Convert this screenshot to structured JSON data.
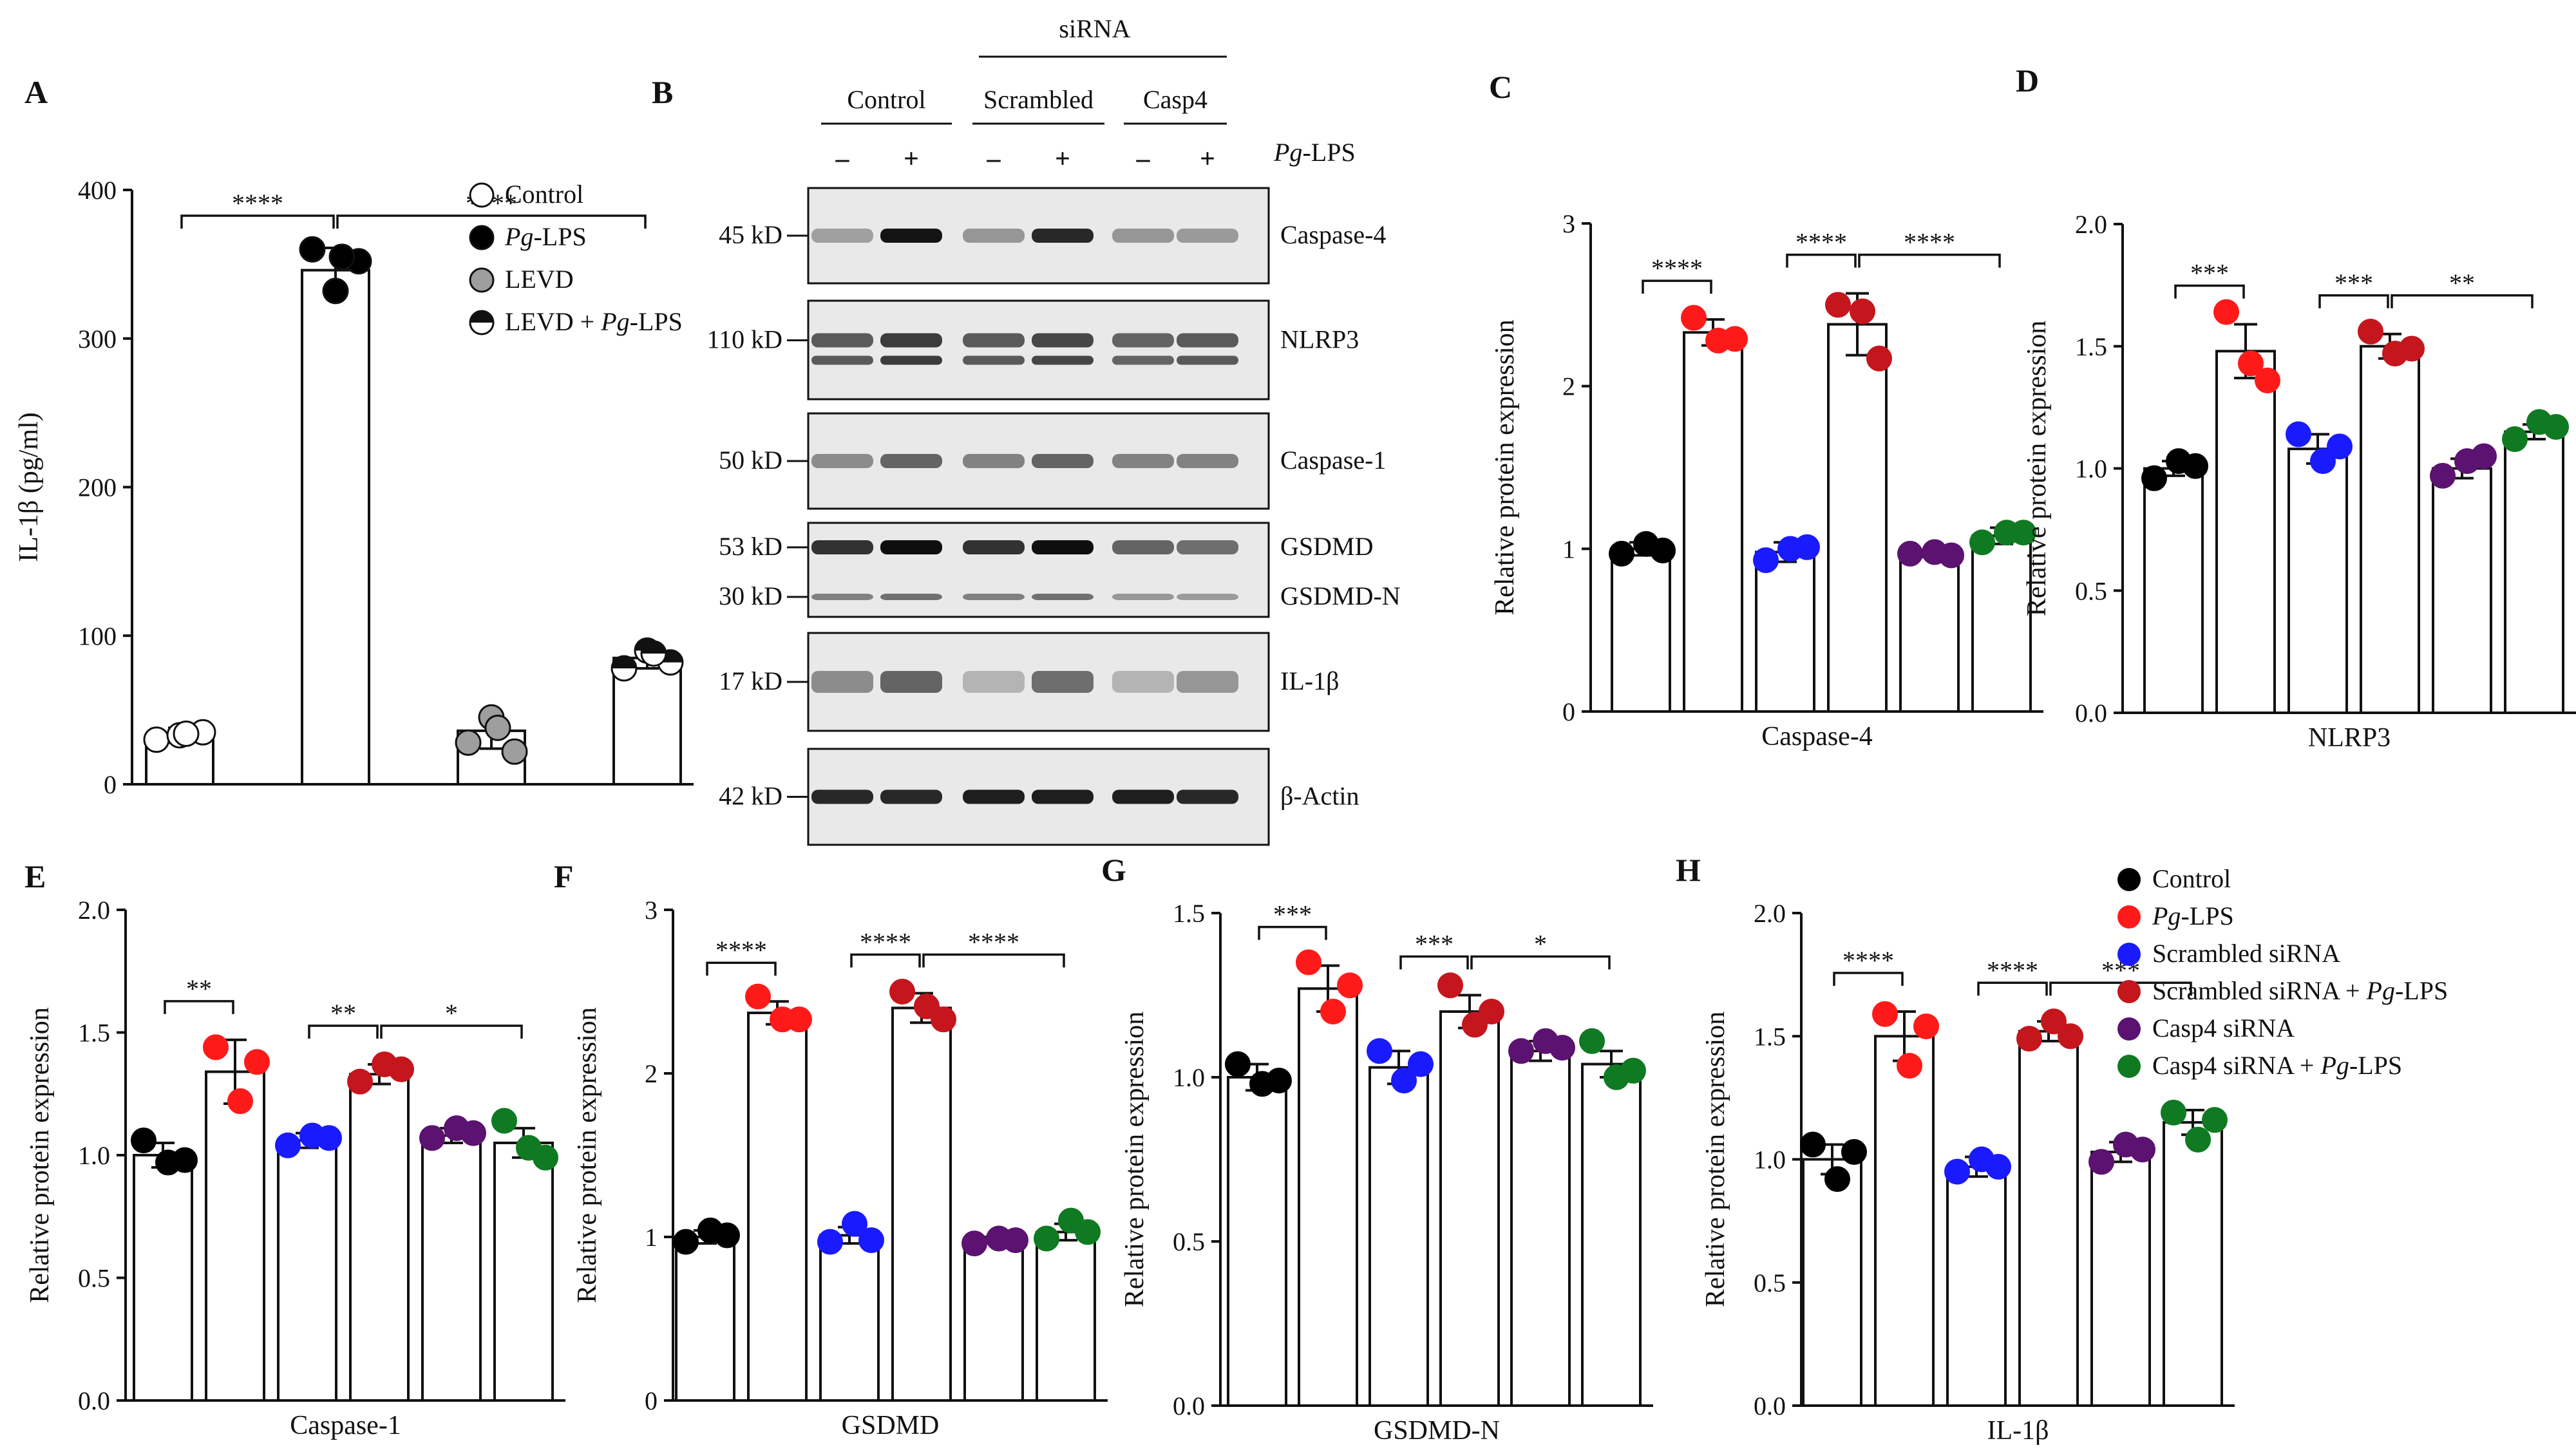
{
  "figure": {
    "panel_labels": [
      "A",
      "B",
      "C",
      "D",
      "E",
      "F",
      "G",
      "H"
    ]
  },
  "chart_data": [
    {
      "panel": "A",
      "type": "bar",
      "title": "",
      "xlabel": "",
      "ylabel": "IL-1β (pg/ml)",
      "ylim": [
        0,
        400
      ],
      "yticks": [
        "0",
        "100",
        "200",
        "300",
        "400"
      ],
      "categories": [
        "Control",
        "Pg-LPS",
        "LEVD",
        "LEVD + Pg-LPS"
      ],
      "values": [
        33,
        346,
        36,
        85
      ],
      "errors": [
        5,
        15,
        12,
        7
      ],
      "points": [
        [
          30,
          33,
          35,
          34
        ],
        [
          360,
          332,
          352,
          355
        ],
        [
          28,
          45,
          22,
          38
        ],
        [
          78,
          90,
          82,
          88
        ]
      ],
      "colors": [
        "#ffffff",
        "#000000",
        "#9e9e9e",
        "half"
      ],
      "legend": [
        {
          "label": "Control",
          "marker": "open"
        },
        {
          "label": "Pg-LPS",
          "italic_part": "Pg",
          "rest": "-LPS",
          "marker": "filled"
        },
        {
          "label": "LEVD",
          "marker": "gray"
        },
        {
          "label": "LEVD + Pg-LPS",
          "prefix": "LEVD + ",
          "italic_part": "Pg",
          "rest": "-LPS",
          "marker": "half"
        }
      ],
      "significance": [
        {
          "label": "****",
          "from": 0,
          "to": 1
        },
        {
          "label": "****",
          "from": 1,
          "to": 3
        }
      ]
    },
    {
      "panel": "C",
      "type": "bar",
      "xlabel": "Caspase-4",
      "ylabel": "Relative protein expression",
      "ylim": [
        0,
        3
      ],
      "yticks": [
        "0",
        "1",
        "2",
        "3"
      ],
      "categories": [
        "Control",
        "Pg-LPS",
        "Scrambled siRNA",
        "Scrambled siRNA + Pg-LPS",
        "Casp4 siRNA",
        "Casp4 siRNA + Pg-LPS"
      ],
      "values": [
        1.0,
        2.33,
        0.98,
        2.38,
        0.97,
        1.08
      ],
      "errors": [
        0.04,
        0.08,
        0.06,
        0.19,
        0.02,
        0.05
      ],
      "points": [
        [
          0.97,
          1.03,
          0.99
        ],
        [
          2.42,
          2.28,
          2.29
        ],
        [
          0.93,
          1.0,
          1.01
        ],
        [
          2.5,
          2.46,
          2.17
        ],
        [
          0.97,
          0.98,
          0.96
        ],
        [
          1.04,
          1.1,
          1.1
        ]
      ],
      "significance": [
        {
          "label": "****",
          "from": 0,
          "to": 1
        },
        {
          "label": "****",
          "from": 2,
          "to": 3
        },
        {
          "label": "****",
          "from": 3,
          "to": 5
        }
      ]
    },
    {
      "panel": "D",
      "type": "bar",
      "xlabel": "NLRP3",
      "ylabel": "Relative protein expression",
      "ylim": [
        0,
        2
      ],
      "yticks": [
        "0.0",
        "0.5",
        "1.0",
        "1.5",
        "2.0"
      ],
      "categories": [
        "Control",
        "Pg-LPS",
        "Scrambled siRNA",
        "Scrambled siRNA + Pg-LPS",
        "Casp4 siRNA",
        "Casp4 siRNA + Pg-LPS"
      ],
      "values": [
        1.0,
        1.48,
        1.08,
        1.5,
        1.0,
        1.15
      ],
      "errors": [
        0.03,
        0.11,
        0.06,
        0.05,
        0.04,
        0.03
      ],
      "points": [
        [
          0.96,
          1.03,
          1.01
        ],
        [
          1.64,
          1.43,
          1.36
        ],
        [
          1.14,
          1.03,
          1.09
        ],
        [
          1.56,
          1.47,
          1.49
        ],
        [
          0.97,
          1.03,
          1.05
        ],
        [
          1.12,
          1.19,
          1.17
        ]
      ],
      "significance": [
        {
          "label": "***",
          "from": 0,
          "to": 1
        },
        {
          "label": "***",
          "from": 2,
          "to": 3
        },
        {
          "label": "**",
          "from": 3,
          "to": 5
        }
      ]
    },
    {
      "panel": "E",
      "type": "bar",
      "xlabel": "Caspase-1",
      "ylabel": "Relative protein expression",
      "ylim": [
        0,
        2
      ],
      "yticks": [
        "0.0",
        "0.5",
        "1.0",
        "1.5",
        "2.0"
      ],
      "categories": [
        "Control",
        "Pg-LPS",
        "Scrambled siRNA",
        "Scrambled siRNA + Pg-LPS",
        "Casp4 siRNA",
        "Casp4 siRNA + Pg-LPS"
      ],
      "values": [
        1.0,
        1.34,
        1.06,
        1.33,
        1.08,
        1.05
      ],
      "errors": [
        0.05,
        0.13,
        0.03,
        0.04,
        0.03,
        0.06
      ],
      "points": [
        [
          1.06,
          0.97,
          0.98
        ],
        [
          1.44,
          1.22,
          1.38
        ],
        [
          1.04,
          1.08,
          1.07
        ],
        [
          1.3,
          1.37,
          1.35
        ],
        [
          1.07,
          1.11,
          1.09
        ],
        [
          1.14,
          1.03,
          0.99
        ]
      ],
      "significance": [
        {
          "label": "**",
          "from": 0,
          "to": 1
        },
        {
          "label": "**",
          "from": 2,
          "to": 3
        },
        {
          "label": "*",
          "from": 3,
          "to": 5
        }
      ]
    },
    {
      "panel": "F",
      "type": "bar",
      "xlabel": "GSDMD",
      "ylabel": "Relative protein expression",
      "ylim": [
        0,
        3
      ],
      "yticks": [
        "0",
        "1",
        "2",
        "3"
      ],
      "categories": [
        "Control",
        "Pg-LPS",
        "Scrambled siRNA",
        "Scrambled siRNA + Pg-LPS",
        "Casp4 siRNA",
        "Casp4 siRNA + Pg-LPS"
      ],
      "values": [
        1.0,
        2.37,
        1.01,
        2.4,
        0.98,
        1.03
      ],
      "errors": [
        0.04,
        0.07,
        0.05,
        0.09,
        0.02,
        0.05
      ],
      "points": [
        [
          0.97,
          1.04,
          1.01
        ],
        [
          2.47,
          2.33,
          2.33
        ],
        [
          0.97,
          1.08,
          0.98
        ],
        [
          2.5,
          2.41,
          2.33
        ],
        [
          0.96,
          0.99,
          0.98
        ],
        [
          0.99,
          1.1,
          1.03
        ]
      ],
      "significance": [
        {
          "label": "****",
          "from": 0,
          "to": 1
        },
        {
          "label": "****",
          "from": 2,
          "to": 3
        },
        {
          "label": "****",
          "from": 3,
          "to": 5
        }
      ]
    },
    {
      "panel": "G",
      "type": "bar",
      "xlabel": "GSDMD-N",
      "ylabel": "Relative protein expression",
      "ylim": [
        0,
        1.5
      ],
      "yticks": [
        "0.0",
        "0.5",
        "1.0",
        "1.5"
      ],
      "categories": [
        "Control",
        "Pg-LPS",
        "Scrambled siRNA",
        "Scrambled siRNA + Pg-LPS",
        "Casp4 siRNA",
        "Casp4 siRNA + Pg-LPS"
      ],
      "values": [
        1.0,
        1.27,
        1.03,
        1.2,
        1.08,
        1.04
      ],
      "errors": [
        0.04,
        0.07,
        0.05,
        0.05,
        0.03,
        0.04
      ],
      "points": [
        [
          1.04,
          0.98,
          0.99
        ],
        [
          1.35,
          1.2,
          1.28
        ],
        [
          1.08,
          0.99,
          1.04
        ],
        [
          1.28,
          1.16,
          1.2
        ],
        [
          1.08,
          1.11,
          1.09
        ],
        [
          1.11,
          1.0,
          1.02
        ]
      ],
      "significance": [
        {
          "label": "***",
          "from": 0,
          "to": 1
        },
        {
          "label": "***",
          "from": 2,
          "to": 3
        },
        {
          "label": "*",
          "from": 3,
          "to": 5
        }
      ]
    },
    {
      "panel": "H",
      "type": "bar",
      "xlabel": "IL-1β",
      "ylabel": "Relative protein expression",
      "ylim": [
        0,
        2
      ],
      "yticks": [
        "0.0",
        "0.5",
        "1.0",
        "1.5",
        "2.0"
      ],
      "categories": [
        "Control",
        "Pg-LPS",
        "Scrambled siRNA",
        "Scrambled siRNA + Pg-LPS",
        "Casp4 siRNA",
        "Casp4 siRNA + Pg-LPS"
      ],
      "values": [
        1.0,
        1.5,
        0.97,
        1.52,
        1.03,
        1.15
      ],
      "errors": [
        0.06,
        0.1,
        0.04,
        0.04,
        0.04,
        0.05
      ],
      "points": [
        [
          1.06,
          0.92,
          1.03
        ],
        [
          1.59,
          1.38,
          1.54
        ],
        [
          0.95,
          1.0,
          0.97
        ],
        [
          1.49,
          1.56,
          1.5
        ],
        [
          0.99,
          1.06,
          1.04
        ],
        [
          1.19,
          1.08,
          1.16
        ]
      ],
      "significance": [
        {
          "label": "****",
          "from": 0,
          "to": 1
        },
        {
          "label": "****",
          "from": 2,
          "to": 3
        },
        {
          "label": "***",
          "from": 3,
          "to": 5
        }
      ]
    }
  ],
  "group_colors": [
    "#000000",
    "#ff1a1a",
    "#1a1aff",
    "#c4161c",
    "#5b1270",
    "#0f7a22"
  ],
  "legend_right": [
    {
      "prefix": "",
      "italic": "",
      "rest": "Control"
    },
    {
      "prefix": "",
      "italic": "Pg",
      "rest": "-LPS"
    },
    {
      "prefix": "Scrambled siRNA",
      "italic": "",
      "rest": ""
    },
    {
      "prefix": "Scrambled siRNA + ",
      "italic": "Pg",
      "rest": "-LPS"
    },
    {
      "prefix": "Casp4 siRNA",
      "italic": "",
      "rest": ""
    },
    {
      "prefix": "Casp4 siRNA + ",
      "italic": "Pg",
      "rest": "-LPS"
    }
  ],
  "blot": {
    "sirna_label": "siRNA",
    "groups": [
      "Control",
      "Scrambled",
      "Casp4"
    ],
    "lps_label_italic": "Pg",
    "lps_label_rest": "-LPS",
    "lane_signs": [
      "–",
      "+",
      "–",
      "+",
      "–",
      "+"
    ],
    "rows": [
      {
        "mw": [
          "45 kD"
        ],
        "names": [
          "Caspase-4"
        ],
        "intensity": [
          0.25,
          0.95,
          0.3,
          0.85,
          0.3,
          0.28
        ]
      },
      {
        "mw": [
          "110 kD"
        ],
        "names": [
          "NLRP3"
        ],
        "intensity": [
          0.6,
          0.75,
          0.6,
          0.7,
          0.55,
          0.6
        ]
      },
      {
        "mw": [
          "50 kD"
        ],
        "names": [
          "Caspase-1"
        ],
        "intensity": [
          0.35,
          0.55,
          0.4,
          0.55,
          0.4,
          0.4
        ]
      },
      {
        "mw": [
          "53 kD",
          "30 kD"
        ],
        "names": [
          "GSDMD",
          "GSDMD-N"
        ],
        "intensity": [
          0.8,
          0.98,
          0.8,
          0.98,
          0.55,
          0.5
        ]
      },
      {
        "mw": [
          "17 kD"
        ],
        "names": [
          "IL-1β"
        ],
        "intensity": [
          0.35,
          0.55,
          0.15,
          0.5,
          0.15,
          0.3
        ]
      },
      {
        "mw": [
          "42 kD"
        ],
        "names": [
          "β-Actin"
        ],
        "intensity": [
          0.85,
          0.85,
          0.9,
          0.9,
          0.9,
          0.85
        ]
      }
    ]
  }
}
